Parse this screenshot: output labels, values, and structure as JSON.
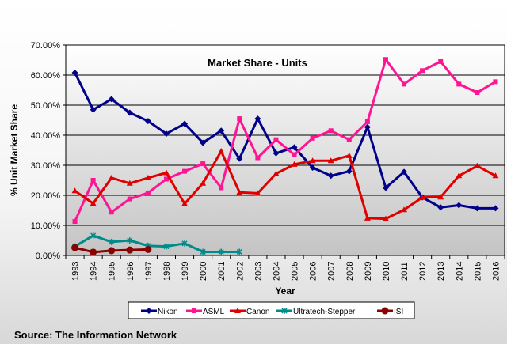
{
  "chart_data": {
    "type": "line",
    "title": "Market Share - Units",
    "xlabel": "Year",
    "ylabel": "% Unit Market Share",
    "ylim": [
      0,
      70
    ],
    "yticks": [
      "0.00%",
      "10.00%",
      "20.00%",
      "30.00%",
      "40.00%",
      "50.00%",
      "60.00%",
      "70.00%"
    ],
    "grid": true,
    "legend": "bottom",
    "categories": [
      "1993",
      "1994",
      "1995",
      "1996",
      "1997",
      "1998",
      "1999",
      "2000",
      "2001",
      "2002",
      "2003",
      "2004",
      "2005",
      "2006",
      "2007",
      "2008",
      "2009",
      "2010",
      "2011",
      "2012",
      "2013",
      "2014",
      "2015",
      "2016"
    ],
    "series": [
      {
        "name": "Nikon",
        "color": "#00008b",
        "marker": "diamond",
        "values": [
          60.8,
          48.5,
          52.0,
          47.5,
          44.7,
          40.5,
          43.8,
          37.5,
          41.5,
          32.2,
          45.5,
          34.0,
          36.0,
          29.2,
          26.5,
          28.0,
          42.7,
          22.5,
          27.8,
          19.3,
          16.0,
          16.7,
          15.7,
          15.7
        ]
      },
      {
        "name": "ASML",
        "color": "#ff1493",
        "marker": "square",
        "values": [
          11.3,
          25.0,
          14.4,
          18.8,
          20.8,
          25.4,
          28.0,
          30.5,
          22.5,
          45.5,
          32.5,
          38.5,
          33.5,
          39.0,
          41.5,
          38.5,
          44.5,
          65.2,
          57.0,
          61.5,
          64.5,
          57.0,
          54.2,
          57.8
        ]
      },
      {
        "name": "Canon",
        "color": "#e00000",
        "marker": "triangle",
        "values": [
          21.5,
          17.3,
          25.8,
          24.0,
          25.8,
          27.5,
          17.2,
          24.0,
          34.7,
          21.0,
          20.7,
          27.2,
          30.3,
          31.5,
          31.5,
          33.2,
          12.4,
          12.2,
          15.2,
          19.3,
          19.4,
          26.5,
          29.8,
          26.5
        ]
      },
      {
        "name": "Ultratech-Stepper",
        "color": "#008b8b",
        "marker": "x",
        "values": [
          3.0,
          6.6,
          4.5,
          5.0,
          3.2,
          3.0,
          4.0,
          1.2,
          1.2,
          1.2,
          null,
          null,
          null,
          null,
          null,
          null,
          null,
          null,
          null,
          null,
          null,
          null,
          null,
          null
        ]
      },
      {
        "name": "ISI",
        "color": "#8b0000",
        "marker": "circle",
        "values": [
          2.6,
          1.1,
          1.6,
          1.8,
          2.0,
          null,
          null,
          null,
          null,
          null,
          null,
          null,
          null,
          null,
          null,
          null,
          null,
          null,
          null,
          null,
          null,
          null,
          null,
          null
        ]
      }
    ]
  },
  "source": "Source: The Information Network"
}
